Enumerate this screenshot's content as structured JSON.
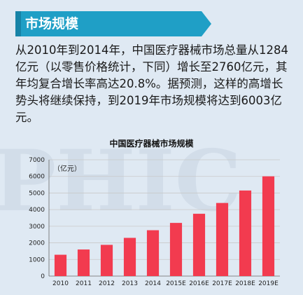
{
  "header": {
    "title": "市场规模"
  },
  "intro": {
    "paragraph": "从2010年到2014年，中国医疗器械市场总量从1284亿元（以零售价格统计，下同）增长至2760亿元，其年均复合增长率高达20.8%。据预测，这样的高增长势头将继续保持，到2019年市场规模将达到6003亿元。"
  },
  "watermark": {
    "text": "PHIC"
  },
  "colors": {
    "banner": "#1f9fc6",
    "bar": "#f23b4f",
    "background": "#dfe9f3"
  },
  "chart_data": {
    "type": "bar",
    "title": "中国医疗器械市场规模",
    "unit": "（亿元）",
    "categories": [
      "2010",
      "2011",
      "2012",
      "2013",
      "2014",
      "2015E",
      "2016E",
      "2017E",
      "2018E",
      "2019E"
    ],
    "values": [
      1284,
      1600,
      1880,
      2300,
      2760,
      3200,
      3750,
      4400,
      5150,
      6003
    ],
    "ylim": [
      0,
      7000
    ],
    "yticks": [
      "0",
      "1000",
      "2000",
      "3000",
      "4000",
      "5000",
      "6000",
      "7000"
    ],
    "grid": true
  }
}
